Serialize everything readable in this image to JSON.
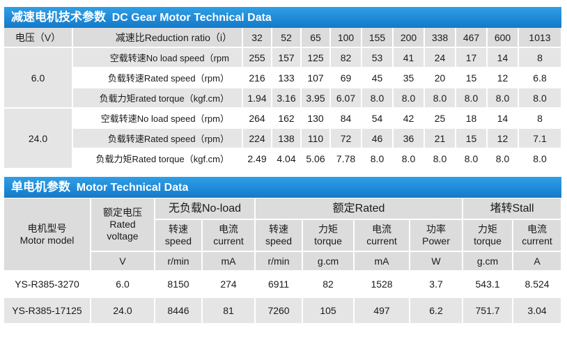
{
  "section1": {
    "title_cn": "减速电机技术参数",
    "title_en": "DC Gear Motor Technical Data",
    "voltage_header": "电压（V）",
    "ratio_header": "减速比Reduction ratio（i）",
    "ratios": [
      "32",
      "52",
      "65",
      "100",
      "155",
      "200",
      "338",
      "467",
      "600",
      "1013"
    ],
    "groups": [
      {
        "voltage": "6.0",
        "rows": [
          {
            "label": "空载转速No load speed（rpm",
            "values": [
              "255",
              "157",
              "125",
              "82",
              "53",
              "41",
              "24",
              "17",
              "14",
              "8"
            ]
          },
          {
            "label": "负载转速Rated speed（rpm）",
            "values": [
              "216",
              "133",
              "107",
              "69",
              "45",
              "35",
              "20",
              "15",
              "12",
              "6.8"
            ]
          },
          {
            "label": "负载力矩rated torque（kgf.cm）",
            "values": [
              "1.94",
              "3.16",
              "3.95",
              "6.07",
              "8.0",
              "8.0",
              "8.0",
              "8.0",
              "8.0",
              "8.0"
            ]
          }
        ]
      },
      {
        "voltage": "24.0",
        "rows": [
          {
            "label": "空载转速No load speed（rpm）",
            "values": [
              "264",
              "162",
              "130",
              "84",
              "54",
              "42",
              "25",
              "18",
              "14",
              "8"
            ]
          },
          {
            "label": "负载转速Rated speed（rpm）",
            "values": [
              "224",
              "138",
              "110",
              "72",
              "46",
              "36",
              "21",
              "15",
              "12",
              "7.1"
            ]
          },
          {
            "label": "负载力矩Rated torque（kgf.cm）",
            "values": [
              "2.49",
              "4.04",
              "5.06",
              "7.78",
              "8.0",
              "8.0",
              "8.0",
              "8.0",
              "8.0",
              "8.0"
            ]
          }
        ]
      }
    ]
  },
  "section2": {
    "title_cn": "单电机参数",
    "title_en": "Motor Technical Data",
    "model_header_cn": "电机型号",
    "model_header_en": "Motor model",
    "rated_voltage_cn": "额定电压",
    "rated_voltage_en1": "Rated",
    "rated_voltage_en2": "voltage",
    "noload_header": "无负载No-load",
    "rated_header": "额定Rated",
    "stall_header": "堵转Stall",
    "sub": [
      {
        "cn": "转速",
        "en": "speed"
      },
      {
        "cn": "电流",
        "en": "current"
      },
      {
        "cn": "转速",
        "en": "speed"
      },
      {
        "cn": "力矩",
        "en": "torque"
      },
      {
        "cn": "电流",
        "en": "current"
      },
      {
        "cn": "功率",
        "en": "Power"
      },
      {
        "cn": "力矩",
        "en": "torque"
      },
      {
        "cn": "电流",
        "en": "current"
      }
    ],
    "units": [
      "V",
      "r/min",
      "mA",
      "r/min",
      "g.cm",
      "mA",
      "W",
      "g.cm",
      "A"
    ],
    "rows": [
      {
        "model": "YS-R385-3270",
        "values": [
          "6.0",
          "8150",
          "274",
          "6911",
          "82",
          "1528",
          "3.7",
          "543.1",
          "8.524"
        ]
      },
      {
        "model": "YS-R385-17125",
        "values": [
          "24.0",
          "8446",
          "81",
          "7260",
          "105",
          "497",
          "6.2",
          "751.7",
          "3.04"
        ]
      }
    ]
  }
}
